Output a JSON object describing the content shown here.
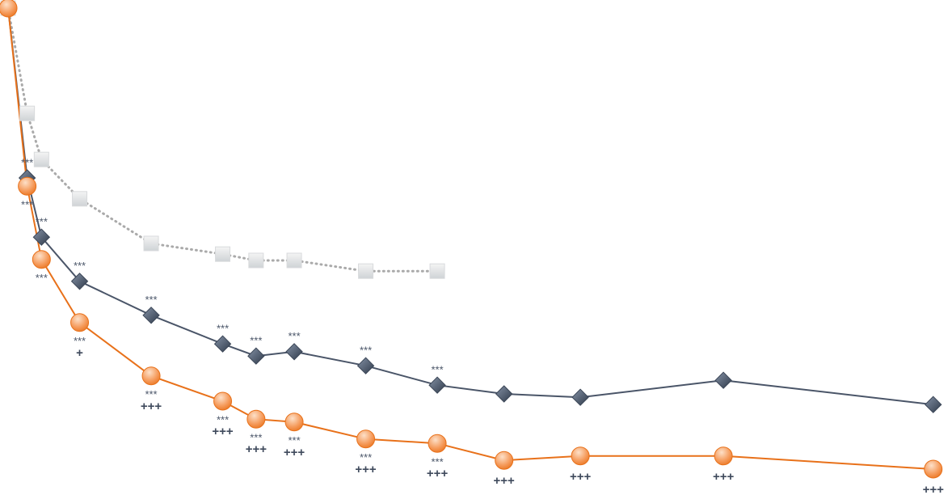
{
  "chart_data": {
    "type": "line",
    "x": [
      0,
      2,
      3.5,
      7.5,
      15,
      22.5,
      26,
      30,
      37.5,
      45,
      52,
      60,
      75,
      97
    ],
    "xlim": [
      -0.85,
      98.55
    ],
    "ylim": [
      0,
      100
    ],
    "series": [
      {
        "color": "#aaaaaa",
        "marker": "square",
        "dash": true,
        "values": [
          100,
          78.3,
          68.8,
          60.7,
          51.5,
          49.3,
          48,
          48,
          45.8,
          45.8,
          null,
          null,
          null,
          null
        ]
      },
      {
        "color": "#4a5568",
        "marker": "diamond",
        "values": [
          100,
          65,
          52.8,
          43.7,
          36.7,
          30.8,
          28.3,
          29.2,
          26.3,
          22.3,
          20.5,
          19.8,
          23.3,
          18.3
        ],
        "labels": [
          null,
          "***",
          "***",
          "***",
          "***",
          "***",
          "***",
          "***",
          "***",
          "***",
          null,
          null,
          null,
          null
        ]
      },
      {
        "color": "#e8711a",
        "marker": "circle",
        "values": [
          100,
          63.3,
          48.2,
          35.2,
          24.2,
          19,
          15.3,
          14.7,
          11.2,
          10.3,
          6.8,
          7.7,
          7.7,
          5
        ],
        "labels": [
          null,
          "***",
          "***",
          "***",
          "***",
          "***",
          "***",
          "***",
          "***",
          "***",
          null,
          null,
          null,
          null
        ],
        "labels2": [
          null,
          null,
          null,
          "+",
          "+++",
          "+++",
          "+++",
          "+++",
          "+++",
          "+++",
          "+++",
          "+++",
          "+++",
          "+++"
        ]
      }
    ]
  }
}
